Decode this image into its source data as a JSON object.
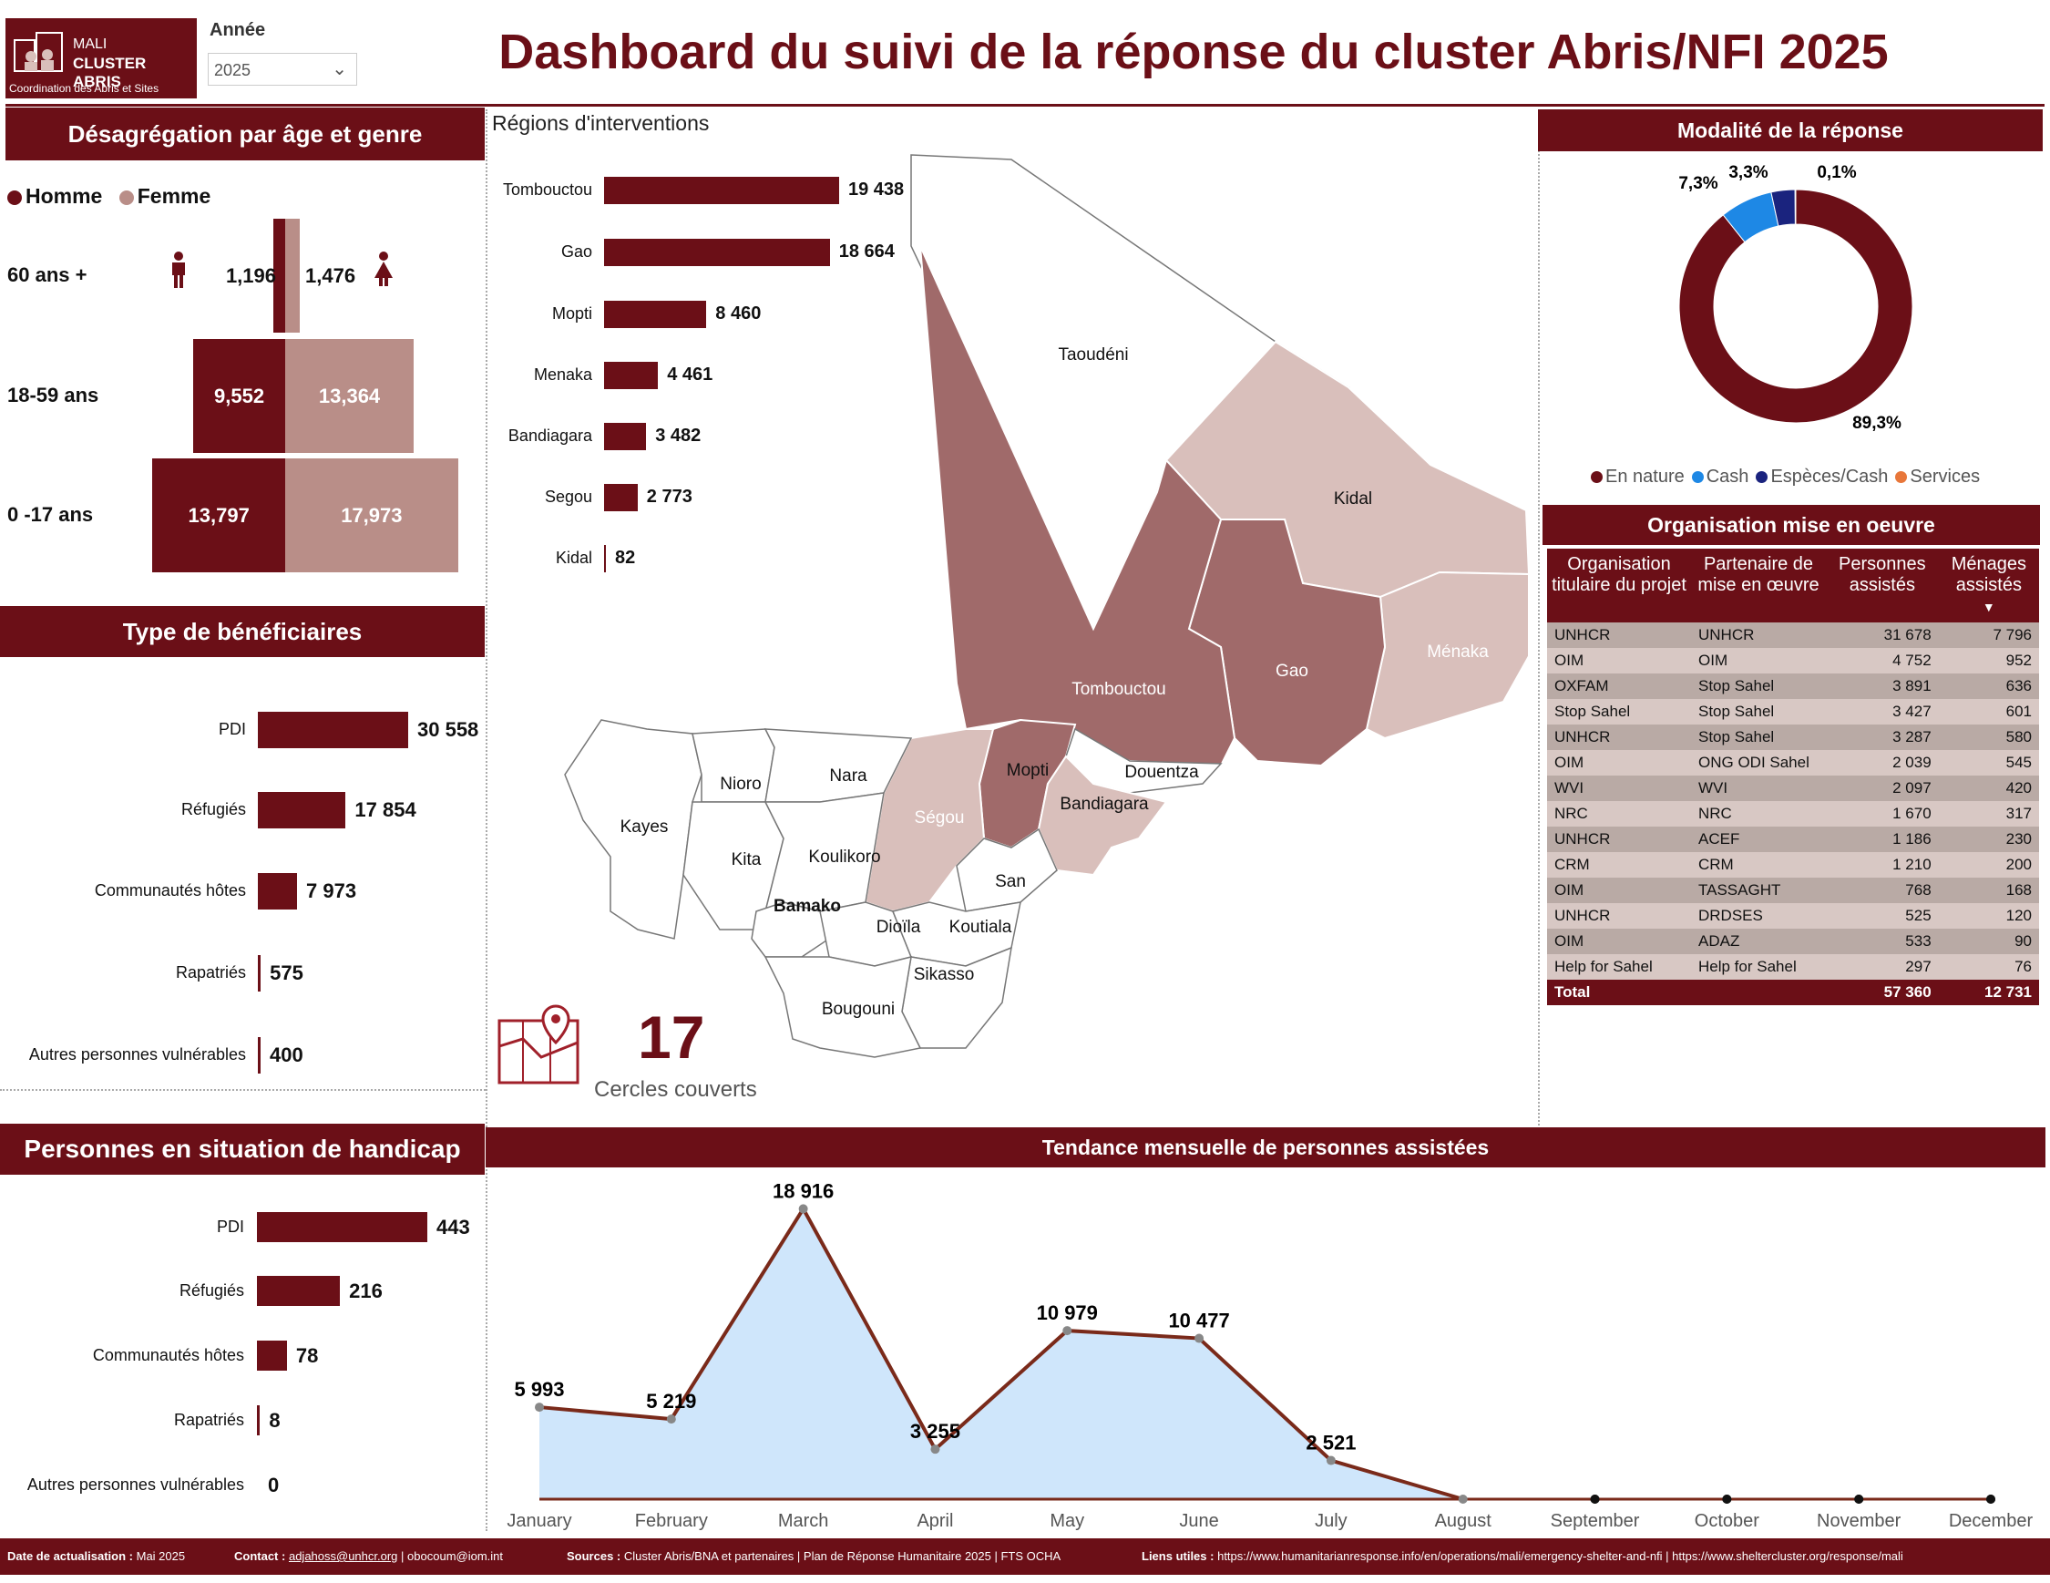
{
  "logo": {
    "line1": "MALI",
    "line2": "CLUSTER ABRIS",
    "line3": "Coordination des Abris et Sites"
  },
  "year_filter": {
    "label": "Année",
    "value": "2025"
  },
  "title": "Dashboard du suivi de la réponse du cluster Abris/NFI 2025",
  "age_gender": {
    "header": "Désagrégation par âge et genre",
    "legend": {
      "male": "Homme",
      "female": "Femme"
    },
    "rows": [
      {
        "label": "60 ans +",
        "male": "1,196",
        "female": "1,476",
        "male_value": 1196,
        "female_value": 1476
      },
      {
        "label": "18-59 ans",
        "male": "9,552",
        "female": "13,364",
        "male_value": 9552,
        "female_value": 13364
      },
      {
        "label": "0 -17 ans",
        "male": "13,797",
        "female": "17,973",
        "male_value": 13797,
        "female_value": 17973
      }
    ]
  },
  "regions": {
    "title": "Régions d'interventions",
    "items": [
      {
        "name": "Tombouctou",
        "label": "19 438",
        "value": 19438
      },
      {
        "name": "Gao",
        "label": "18 664",
        "value": 18664
      },
      {
        "name": "Mopti",
        "label": "8 460",
        "value": 8460
      },
      {
        "name": "Menaka",
        "label": "4 461",
        "value": 4461
      },
      {
        "name": "Bandiagara",
        "label": "3 482",
        "value": 3482
      },
      {
        "name": "Segou",
        "label": "2 773",
        "value": 2773
      },
      {
        "name": "Kidal",
        "label": "82",
        "value": 82
      }
    ]
  },
  "map_labels": [
    "Taoudéni",
    "Kidal",
    "Gao",
    "Tombouctou",
    "Ménaka",
    "Mopti",
    "Douentza",
    "Bandiagara",
    "Ségou",
    "Nara",
    "Nioro",
    "Kayes",
    "Kita",
    "Koulikoro",
    "Bamako",
    "San",
    "Dioïla",
    "Koutiala",
    "Sikasso",
    "Bougouni"
  ],
  "cercles": {
    "value": "17",
    "label": "Cercles couverts"
  },
  "beneficiaries": {
    "header": "Type de bénéficiaires",
    "items": [
      {
        "name": "PDI",
        "label": "30 558",
        "value": 30558
      },
      {
        "name": "Réfugiés",
        "label": "17 854",
        "value": 17854
      },
      {
        "name": "Communautés hôtes",
        "label": "7 973",
        "value": 7973
      },
      {
        "name": "Rapatriés",
        "label": "575",
        "value": 575
      },
      {
        "name": "Autres personnes vulnérables",
        "label": "400",
        "value": 400
      }
    ]
  },
  "handicap": {
    "header": "Personnes en situation de handicap",
    "items": [
      {
        "name": "PDI",
        "label": "443",
        "value": 443
      },
      {
        "name": "Réfugiés",
        "label": "216",
        "value": 216
      },
      {
        "name": "Communautés hôtes",
        "label": "78",
        "value": 78
      },
      {
        "name": "Rapatriés",
        "label": "8",
        "value": 8
      },
      {
        "name": "Autres personnes vulnérables",
        "label": "0",
        "value": 0
      }
    ]
  },
  "modalite": {
    "header": "Modalité de la réponse",
    "slices": [
      {
        "name": "En nature",
        "label": "89,3%",
        "value": 89.3,
        "color": "#6b0f17"
      },
      {
        "name": "Cash",
        "label": "7,3%",
        "value": 7.3,
        "color": "#1e88e5"
      },
      {
        "name": "Espèces/Cash",
        "label": "3,3%",
        "value": 3.3,
        "color": "#1a237e"
      },
      {
        "name": "Services",
        "label": "0,1%",
        "value": 0.1,
        "color": "#e8773a"
      }
    ]
  },
  "organisation": {
    "header": "Organisation mise en oeuvre",
    "columns": [
      "Organisation titulaire du projet",
      "Partenaire de mise en œuvre",
      "Personnes assistés",
      "Ménages assistés"
    ],
    "rows": [
      [
        "UNHCR",
        "UNHCR",
        "31 678",
        "7 796"
      ],
      [
        "OIM",
        "OIM",
        "4 752",
        "952"
      ],
      [
        "OXFAM",
        "Stop Sahel",
        "3 891",
        "636"
      ],
      [
        "Stop Sahel",
        "Stop Sahel",
        "3 427",
        "601"
      ],
      [
        "UNHCR",
        "Stop Sahel",
        "3 287",
        "580"
      ],
      [
        "OIM",
        "ONG ODI Sahel",
        "2 039",
        "545"
      ],
      [
        "WVI",
        "WVI",
        "2 097",
        "420"
      ],
      [
        "NRC",
        "NRC",
        "1 670",
        "317"
      ],
      [
        "UNHCR",
        "ACEF",
        "1 186",
        "230"
      ],
      [
        "CRM",
        "CRM",
        "1 210",
        "200"
      ],
      [
        "OIM",
        "TASSAGHT",
        "768",
        "168"
      ],
      [
        "UNHCR",
        "DRDSES",
        "525",
        "120"
      ],
      [
        "OIM",
        "ADAZ",
        "533",
        "90"
      ],
      [
        "Help for Sahel",
        "Help for Sahel",
        "297",
        "76"
      ]
    ],
    "total": [
      "Total",
      "",
      "57 360",
      "12 731"
    ]
  },
  "chart_data": {
    "type": "area",
    "title": "Tendance mensuelle de personnes assistées",
    "categories": [
      "January",
      "February",
      "March",
      "April",
      "May",
      "June",
      "July",
      "August",
      "September",
      "October",
      "November",
      "December"
    ],
    "values": [
      5993,
      5219,
      18916,
      3255,
      10979,
      10477,
      2521,
      0,
      0,
      0,
      0,
      0
    ],
    "data_labels": [
      "5 993",
      "5 219",
      "18 916",
      "3 255",
      "10 979",
      "10 477",
      "2 521",
      "",
      "",
      "",
      "",
      ""
    ],
    "ylim": [
      0,
      19000
    ],
    "line_color": "#7a2a1a",
    "fill_color": "#cfe6fb"
  },
  "footer": {
    "date_label": "Date de actualisation :",
    "date_value": "Mai 2025",
    "contact_label": "Contact :",
    "contact_email1": "adjahoss@unhcr.org",
    "contact_sep": "|",
    "contact_email2": "obocoum@iom.int",
    "sources_label": "Sources :",
    "sources_value": "Cluster Abris/BNA et partenaires | Plan de Réponse Humanitaire 2025 | FTS OCHA",
    "links_label": "Liens utiles :",
    "links_value": "https://www.humanitarianresponse.info/en/operations/mali/emergency-shelter-and-nfi | https://www.sheltercluster.org/response/mali"
  },
  "colors": {
    "accent": "#6b0f17",
    "female": "#b98e88",
    "light_region": "#d9bfbb",
    "mid_region": "#a06a6a"
  }
}
